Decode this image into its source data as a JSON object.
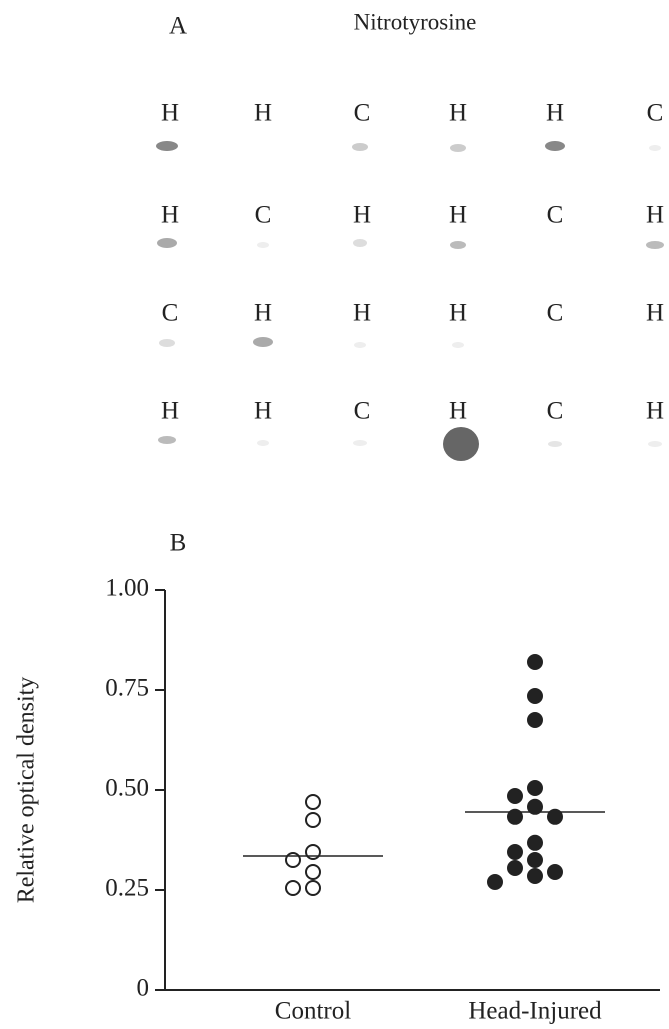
{
  "panel_a": {
    "label": "A",
    "title": "Nitrotyrosine",
    "rows": [
      [
        "H",
        "H",
        "C",
        "H",
        "H",
        "C"
      ],
      [
        "H",
        "C",
        "H",
        "H",
        "C",
        "H"
      ],
      [
        "C",
        "H",
        "H",
        "H",
        "C",
        "H"
      ],
      [
        "H",
        "H",
        "C",
        "H",
        "C",
        "H"
      ]
    ]
  },
  "chart_data": {
    "type": "strip",
    "label": "B",
    "ylabel": "Relative optical density",
    "categories": [
      "Control",
      "Head-Injured"
    ],
    "series": [
      {
        "values": [
          0.47,
          0.425,
          0.345,
          0.325,
          0.295,
          0.255,
          0.255
        ],
        "color": "#222",
        "fill": "none"
      },
      {
        "values": [
          0.82,
          0.735,
          0.675,
          0.505,
          0.485,
          0.458,
          0.433,
          0.433,
          0.368,
          0.345,
          0.325,
          0.305,
          0.295,
          0.285,
          0.27
        ],
        "color": "#222",
        "fill": "#222"
      }
    ],
    "means": [
      0.335,
      0.445
    ],
    "ylim": [
      0,
      1
    ],
    "yticks": [
      0,
      0.25,
      {
        "value": 0.5,
        "label": "0.50"
      },
      0.75,
      {
        "value": 1,
        "label": "1.00"
      }
    ]
  }
}
